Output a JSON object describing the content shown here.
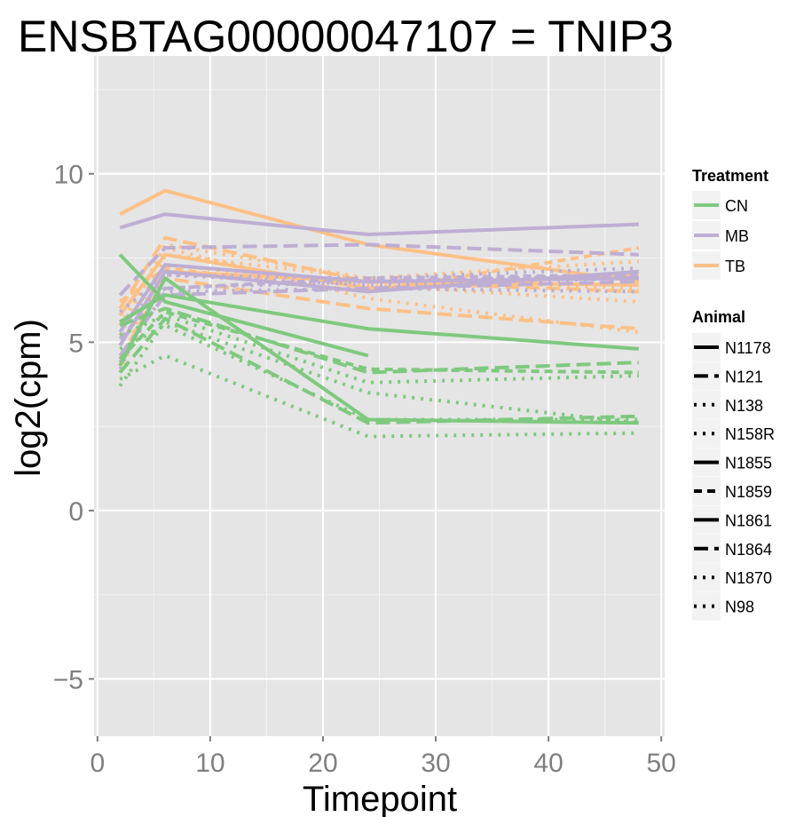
{
  "chart_data": {
    "type": "line",
    "title": "ENSBTAG00000047107  =  TNIP3",
    "xlabel": "Timepoint",
    "ylabel": "log2(cpm)",
    "xlim": [
      -0.3,
      50.3
    ],
    "ylim": [
      -6.7,
      13.5
    ],
    "xticks": [
      0,
      10,
      20,
      30,
      40,
      50
    ],
    "yticks": [
      -5,
      0,
      5,
      10
    ],
    "x": [
      2,
      6,
      24,
      48
    ],
    "background": "#e5e5e5",
    "grid": true,
    "legend_placement": "right",
    "legends": {
      "treatment": {
        "title": "Treatment",
        "entries": [
          {
            "label": "CN",
            "color": "#7fc97f"
          },
          {
            "label": "MB",
            "color": "#beaed4"
          },
          {
            "label": "TB",
            "color": "#fdc086"
          }
        ]
      },
      "animal": {
        "title": "Animal",
        "entries": [
          {
            "label": "N1178",
            "dash": "solid"
          },
          {
            "label": "N121",
            "dash": "longdash"
          },
          {
            "label": "N138",
            "dash": "dotted"
          },
          {
            "label": "N158R",
            "dash": "dotted"
          },
          {
            "label": "N1855",
            "dash": "solid"
          },
          {
            "label": "N1859",
            "dash": "dashed"
          },
          {
            "label": "N1861",
            "dash": "solid"
          },
          {
            "label": "N1864",
            "dash": "longdash"
          },
          {
            "label": "N1870",
            "dash": "dotted"
          },
          {
            "label": "N98",
            "dash": "dotted"
          }
        ]
      }
    },
    "series": [
      {
        "treatment": "TB",
        "animal": "N1178",
        "values": [
          8.8,
          9.5,
          7.9,
          6.8
        ]
      },
      {
        "treatment": "TB",
        "animal": "N121",
        "values": [
          6.0,
          8.1,
          6.8,
          6.5
        ]
      },
      {
        "treatment": "TB",
        "animal": "N138",
        "values": [
          5.5,
          7.8,
          6.3,
          5.3
        ]
      },
      {
        "treatment": "TB",
        "animal": "N158R",
        "values": [
          5.2,
          7.9,
          6.9,
          7.4
        ]
      },
      {
        "treatment": "TB",
        "animal": "N1855",
        "values": [
          5.8,
          7.6,
          6.6,
          7.0
        ]
      },
      {
        "treatment": "TB",
        "animal": "N1859",
        "values": [
          6.2,
          7.2,
          6.5,
          7.8
        ]
      },
      {
        "treatment": "TB",
        "animal": "N1861",
        "values": [
          4.9,
          7.1,
          6.8,
          6.7
        ]
      },
      {
        "treatment": "TB",
        "animal": "N1864",
        "values": [
          4.5,
          6.9,
          6.0,
          5.4
        ]
      },
      {
        "treatment": "TB",
        "animal": "N1870",
        "values": [
          4.3,
          7.6,
          6.9,
          6.6
        ]
      },
      {
        "treatment": "TB",
        "animal": "N98",
        "values": [
          4.1,
          7.3,
          6.7,
          6.2
        ]
      },
      {
        "treatment": "MB",
        "animal": "N1178",
        "values": [
          8.4,
          8.8,
          8.2,
          8.5
        ]
      },
      {
        "treatment": "MB",
        "animal": "N121",
        "values": [
          6.4,
          7.8,
          7.9,
          7.6
        ]
      },
      {
        "treatment": "MB",
        "animal": "N138",
        "values": [
          5.9,
          7.0,
          6.9,
          7.2
        ]
      },
      {
        "treatment": "MB",
        "animal": "N158R",
        "values": [
          5.6,
          6.6,
          6.8,
          7.0
        ]
      },
      {
        "treatment": "MB",
        "animal": "N1855",
        "values": [
          5.3,
          7.3,
          6.8,
          6.9
        ]
      },
      {
        "treatment": "MB",
        "animal": "N1859",
        "values": [
          5.1,
          6.6,
          6.9,
          7.0
        ]
      },
      {
        "treatment": "MB",
        "animal": "N1861",
        "values": [
          4.9,
          7.1,
          6.5,
          7.1
        ]
      },
      {
        "treatment": "MB",
        "animal": "N1864",
        "values": [
          4.6,
          6.4,
          6.6,
          6.8
        ]
      },
      {
        "treatment": "MB",
        "animal": "N1870",
        "values": [
          4.4,
          6.5,
          6.6,
          6.5
        ]
      },
      {
        "treatment": "MB",
        "animal": "N98",
        "values": [
          4.2,
          7.0,
          6.7,
          6.9
        ]
      },
      {
        "treatment": "CN",
        "animal": "N1178",
        "values": [
          5.6,
          6.4,
          5.4,
          4.8
        ]
      },
      {
        "treatment": "CN",
        "animal": "N121",
        "values": [
          5.5,
          6.0,
          4.1,
          4.4
        ]
      },
      {
        "treatment": "CN",
        "animal": "N138",
        "values": [
          5.2,
          5.8,
          3.8,
          4.0
        ]
      },
      {
        "treatment": "CN",
        "animal": "N158R",
        "values": [
          4.8,
          5.5,
          2.7,
          2.7
        ]
      },
      {
        "treatment": "CN",
        "animal": "N1855",
        "values": [
          7.6,
          6.2,
          4.6,
          null
        ]
      },
      {
        "treatment": "CN",
        "animal": "N1859",
        "values": [
          4.5,
          5.9,
          4.2,
          4.1
        ]
      },
      {
        "treatment": "CN",
        "animal": "N1861",
        "values": [
          4.3,
          6.9,
          2.7,
          2.6
        ]
      },
      {
        "treatment": "CN",
        "animal": "N1864",
        "values": [
          4.1,
          5.7,
          2.6,
          2.8
        ]
      },
      {
        "treatment": "CN",
        "animal": "N1870",
        "values": [
          3.9,
          4.6,
          2.2,
          2.3
        ]
      },
      {
        "treatment": "CN",
        "animal": "N98",
        "values": [
          3.7,
          5.6,
          3.5,
          2.6
        ]
      }
    ]
  }
}
